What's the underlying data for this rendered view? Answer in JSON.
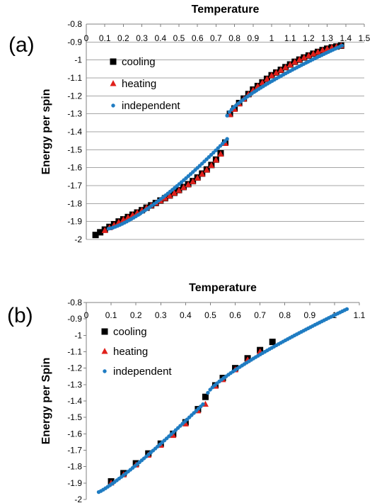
{
  "colors": {
    "cooling": "#000000",
    "heating": "#e0201b",
    "independent": "#1f7cc2",
    "grid": "#a6a6a6"
  },
  "chart_data": [
    {
      "panel_label": "(a)",
      "type": "scatter",
      "xlabel": "Temperature",
      "ylabel": "Energy per spin",
      "xlim": [
        0,
        1.5
      ],
      "ylim": [
        -2,
        -0.8
      ],
      "x_ticks": [
        "0",
        "0.1",
        "0.2",
        "0.3",
        "0.4",
        "0.5",
        "0.6",
        "0.7",
        "0.8",
        "0.9",
        "1",
        "1.1",
        "1.2",
        "1.3",
        "1.4",
        "1.5"
      ],
      "y_ticks": [
        "-0.8",
        "-0.9",
        "-1",
        "-1.1",
        "-1.2",
        "-1.3",
        "-1.4",
        "-1.5",
        "-1.6",
        "-1.7",
        "-1.8",
        "-1.9",
        "-2"
      ],
      "grid": "horizontal",
      "legend_position": "top-left",
      "series": [
        {
          "name": "cooling",
          "marker": "square",
          "x": [
            0.05,
            0.075,
            0.1,
            0.125,
            0.15,
            0.175,
            0.2,
            0.225,
            0.25,
            0.275,
            0.3,
            0.325,
            0.35,
            0.375,
            0.4,
            0.425,
            0.45,
            0.475,
            0.5,
            0.525,
            0.55,
            0.575,
            0.6,
            0.625,
            0.65,
            0.675,
            0.7,
            0.725,
            0.75,
            0.775,
            0.8,
            0.825,
            0.85,
            0.875,
            0.9,
            0.925,
            0.95,
            0.975,
            1.0,
            1.025,
            1.05,
            1.075,
            1.1,
            1.125,
            1.15,
            1.175,
            1.2,
            1.225,
            1.25,
            1.275,
            1.3,
            1.325,
            1.35,
            1.375
          ],
          "y": [
            -1.975,
            -1.96,
            -1.945,
            -1.93,
            -1.915,
            -1.9,
            -1.888,
            -1.875,
            -1.862,
            -1.85,
            -1.837,
            -1.823,
            -1.81,
            -1.797,
            -1.783,
            -1.77,
            -1.755,
            -1.74,
            -1.725,
            -1.708,
            -1.692,
            -1.675,
            -1.655,
            -1.633,
            -1.61,
            -1.585,
            -1.555,
            -1.52,
            -1.46,
            -1.3,
            -1.27,
            -1.24,
            -1.215,
            -1.19,
            -1.165,
            -1.145,
            -1.125,
            -1.105,
            -1.085,
            -1.07,
            -1.055,
            -1.04,
            -1.025,
            -1.01,
            -0.998,
            -0.986,
            -0.975,
            -0.965,
            -0.955,
            -0.945,
            -0.937,
            -0.93,
            -0.925,
            -0.92
          ]
        },
        {
          "name": "heating",
          "marker": "triangle",
          "x": [
            0.1,
            0.125,
            0.15,
            0.175,
            0.2,
            0.225,
            0.25,
            0.275,
            0.3,
            0.325,
            0.35,
            0.375,
            0.4,
            0.425,
            0.45,
            0.475,
            0.5,
            0.525,
            0.55,
            0.575,
            0.6,
            0.625,
            0.65,
            0.675,
            0.7,
            0.725,
            0.75,
            0.775,
            0.8,
            0.825,
            0.85,
            0.875,
            0.9,
            0.925,
            0.95,
            0.975,
            1.0,
            1.025,
            1.05,
            1.075,
            1.1,
            1.125,
            1.15,
            1.175,
            1.2,
            1.225,
            1.25,
            1.275,
            1.3,
            1.325,
            1.35,
            1.375
          ],
          "y": [
            -1.95,
            -1.935,
            -1.92,
            -1.905,
            -1.89,
            -1.877,
            -1.864,
            -1.851,
            -1.838,
            -1.824,
            -1.811,
            -1.798,
            -1.785,
            -1.771,
            -1.757,
            -1.742,
            -1.727,
            -1.711,
            -1.695,
            -1.678,
            -1.658,
            -1.636,
            -1.613,
            -1.588,
            -1.558,
            -1.525,
            -1.465,
            -1.305,
            -1.275,
            -1.245,
            -1.218,
            -1.192,
            -1.168,
            -1.147,
            -1.127,
            -1.107,
            -1.087,
            -1.072,
            -1.057,
            -1.042,
            -1.027,
            -1.012,
            -0.999,
            -0.987,
            -0.976,
            -0.966,
            -0.956,
            -0.946,
            -0.938,
            -0.931,
            -0.926,
            -0.921
          ]
        }
      ],
      "independent_curves": [
        {
          "name": "independent",
          "segments": [
            {
              "x": [
                0.12,
                0.76
              ],
              "y": [
                -1.94,
                -1.44
              ]
            },
            {
              "x": [
                0.76,
                1.38
              ],
              "y": [
                -1.31,
                -0.92
              ]
            }
          ]
        }
      ]
    },
    {
      "panel_label": "(b)",
      "type": "scatter",
      "xlabel": "Temperature",
      "ylabel": "Energy per Spin",
      "xlim": [
        0,
        1.1
      ],
      "ylim": [
        -2,
        -0.8
      ],
      "x_ticks": [
        "0",
        "0.1",
        "0.2",
        "0.3",
        "0.4",
        "0.5",
        "0.6",
        "0.7",
        "0.8",
        "0.9",
        "1",
        "1.1"
      ],
      "y_ticks": [
        "-0.8",
        "-0.9",
        "-1",
        "-1.1",
        "-1.2",
        "-1.3",
        "-1.4",
        "-1.5",
        "-1.6",
        "-1.7",
        "-1.8",
        "-1.9",
        "-2"
      ],
      "grid": "none",
      "legend_position": "top-left",
      "series": [
        {
          "name": "cooling",
          "marker": "square",
          "x": [
            0.1,
            0.15,
            0.2,
            0.25,
            0.3,
            0.35,
            0.4,
            0.45,
            0.48,
            0.52,
            0.55,
            0.6,
            0.65,
            0.7,
            0.75
          ],
          "y": [
            -1.89,
            -1.84,
            -1.78,
            -1.72,
            -1.66,
            -1.6,
            -1.53,
            -1.45,
            -1.375,
            -1.305,
            -1.26,
            -1.2,
            -1.14,
            -1.09,
            -1.04
          ]
        },
        {
          "name": "heating",
          "marker": "triangle",
          "x": [
            0.1,
            0.15,
            0.2,
            0.25,
            0.3,
            0.35,
            0.4,
            0.45,
            0.48,
            0.52,
            0.55,
            0.6,
            0.65,
            0.7
          ],
          "y": [
            -1.9,
            -1.85,
            -1.79,
            -1.73,
            -1.67,
            -1.61,
            -1.54,
            -1.46,
            -1.42,
            -1.31,
            -1.27,
            -1.21,
            -1.15,
            -1.1
          ]
        }
      ],
      "independent_curves": [
        {
          "name": "independent",
          "segments": [
            {
              "x": [
                0.05,
                0.47
              ],
              "y": [
                -1.955,
                -1.42
              ]
            },
            {
              "x": [
                0.49,
                1.05
              ],
              "y": [
                -1.35,
                -0.84
              ]
            }
          ]
        }
      ]
    }
  ]
}
